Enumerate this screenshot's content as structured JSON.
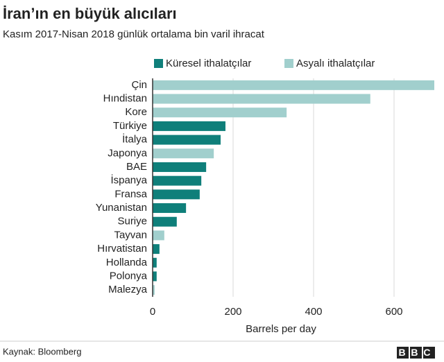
{
  "chart_data": {
    "type": "bar",
    "orientation": "horizontal",
    "title": "İran’ın en büyük alıcıları",
    "subtitle": "Kasım 2017-Nisan 2018 günlük ortalama bin varil ihracat",
    "categories": [
      "Çin",
      "Hındistan",
      "Kore",
      "Türkiye",
      "İtalya",
      "Japonya",
      "BAE",
      "İspanya",
      "Fransa",
      "Yunanistan",
      "Suriye",
      "Tayvan",
      "Hırvatistan",
      "Hollanda",
      "Polonya",
      "Malezya"
    ],
    "series": [
      {
        "name": "Küresel ithalatçılar",
        "color": "#0f7f7a",
        "values": [
          null,
          null,
          null,
          181,
          169,
          null,
          133,
          121,
          117,
          83,
          60,
          null,
          17,
          10,
          10,
          null
        ]
      },
      {
        "name": "Asyalı ithalatçılar",
        "color": "#a1cfcd",
        "values": [
          700,
          541,
          333,
          null,
          null,
          152,
          null,
          null,
          null,
          null,
          null,
          29,
          null,
          null,
          null,
          5
        ]
      }
    ],
    "xlabel": "Barrels per day",
    "xlim": [
      0,
      700
    ],
    "xticks": [
      0,
      200,
      400,
      600
    ],
    "grid": true,
    "source": "Kaynak: Bloomberg",
    "logo": "BBC"
  }
}
